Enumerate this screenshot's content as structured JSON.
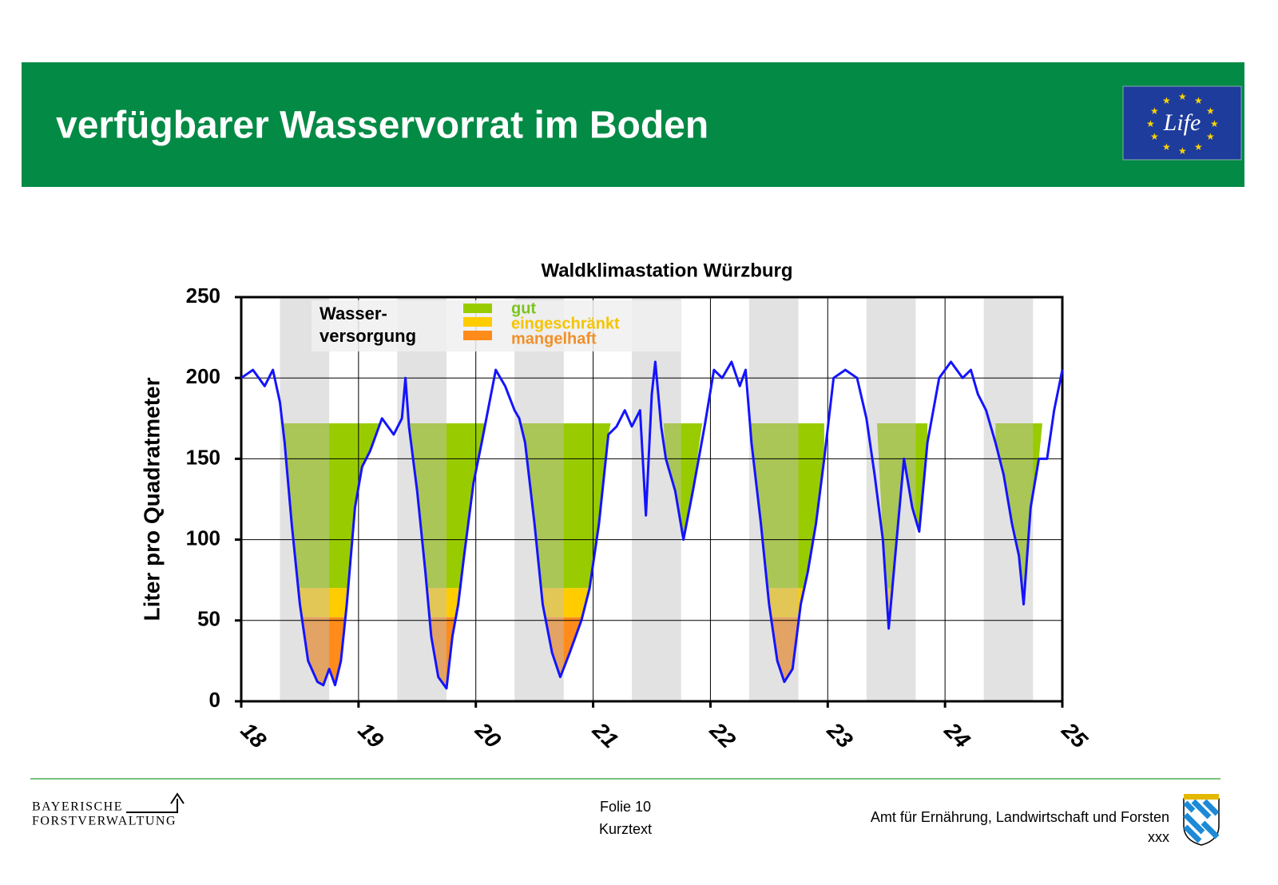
{
  "header": {
    "title": "verfügbarer Wasservorrat im Boden",
    "logo": "Life"
  },
  "chart_data": {
    "type": "line",
    "title": "Waldklimastation Würzburg",
    "y_label": "Liter pro Quadratmeter",
    "x": [
      18.0,
      18.1,
      18.2,
      18.27,
      18.33,
      18.37,
      18.43,
      18.5,
      18.57,
      18.65,
      18.7,
      18.75,
      18.8,
      18.85,
      18.9,
      18.97,
      19.03,
      19.1,
      19.2,
      19.3,
      19.37,
      19.4,
      19.43,
      19.5,
      19.57,
      19.62,
      19.68,
      19.75,
      19.8,
      19.85,
      19.9,
      19.98,
      20.05,
      20.17,
      20.25,
      20.33,
      20.37,
      20.42,
      20.5,
      20.57,
      20.65,
      20.72,
      20.8,
      20.9,
      20.97,
      21.05,
      21.13,
      21.2,
      21.27,
      21.33,
      21.4,
      21.45,
      21.5,
      21.53,
      21.58,
      21.62,
      21.7,
      21.77,
      21.85,
      21.95,
      22.03,
      22.1,
      22.18,
      22.25,
      22.3,
      22.35,
      22.43,
      22.5,
      22.57,
      22.63,
      22.7,
      22.77,
      22.83,
      22.9,
      22.97,
      23.05,
      23.15,
      23.25,
      23.33,
      23.4,
      23.47,
      23.52,
      23.6,
      23.65,
      23.72,
      23.78,
      23.85,
      23.95,
      24.05,
      24.15,
      24.22,
      24.28,
      24.35,
      24.43,
      24.5,
      24.57,
      24.63,
      24.67,
      24.73,
      24.8,
      24.87,
      24.93,
      25.0
    ],
    "series": [
      {
        "color": "#1414ff",
        "values": [
          200,
          205,
          195,
          205,
          185,
          160,
          110,
          60,
          25,
          12,
          10,
          20,
          10,
          25,
          60,
          120,
          145,
          155,
          175,
          165,
          175,
          200,
          170,
          130,
          80,
          40,
          15,
          8,
          40,
          60,
          90,
          135,
          160,
          205,
          195,
          180,
          175,
          160,
          110,
          60,
          30,
          15,
          30,
          50,
          70,
          110,
          165,
          170,
          180,
          170,
          180,
          115,
          190,
          210,
          170,
          150,
          130,
          100,
          130,
          170,
          205,
          200,
          210,
          195,
          205,
          160,
          110,
          60,
          25,
          12,
          20,
          60,
          80,
          110,
          150,
          200,
          205,
          200,
          175,
          140,
          100,
          45,
          110,
          150,
          120,
          105,
          160,
          200,
          210,
          200,
          205,
          190,
          180,
          160,
          140,
          110,
          90,
          60,
          120,
          150,
          150,
          180,
          205
        ]
      }
    ],
    "xlim": [
      18,
      25
    ],
    "ylim": [
      0,
      250
    ],
    "xticks": [
      18,
      19,
      20,
      21,
      22,
      23,
      24,
      25
    ],
    "yticks": [
      0,
      50,
      100,
      150,
      200,
      250
    ],
    "grid": true,
    "seasons": [
      [
        18.33,
        18.75
      ],
      [
        19.33,
        19.75
      ],
      [
        20.33,
        20.75
      ],
      [
        21.33,
        21.75
      ],
      [
        22.33,
        22.75
      ],
      [
        23.33,
        23.75
      ],
      [
        24.33,
        24.75
      ]
    ],
    "fill_periods": [
      [
        18.33,
        19.22
      ],
      [
        19.43,
        20.08
      ],
      [
        20.35,
        21.15
      ],
      [
        21.6,
        21.93
      ],
      [
        22.33,
        22.97
      ],
      [
        23.42,
        23.85
      ],
      [
        24.43,
        24.83
      ]
    ],
    "legend": {
      "title": [
        "Wasser-",
        "versorgung"
      ],
      "entries": [
        {
          "name": "gut",
          "color": "#99cc00",
          "text_color": "#7dc41f",
          "upper": 172,
          "lower": 70
        },
        {
          "name": "eingeschränkt",
          "color": "#ffcc00",
          "text_color": "#f5c400",
          "upper": 70,
          "lower": 52
        },
        {
          "name": "mangelhaft",
          "color": "#ff8c1a",
          "text_color": "#f0902a",
          "upper": 52,
          "lower": 0
        }
      ]
    }
  },
  "footer": {
    "left": [
      "BAYERISCHE",
      "FORSTVERWALTUNG"
    ],
    "center": [
      "Folie 10",
      "Kurztext"
    ],
    "right": [
      "Amt für Ernährung, Landwirtschaft und Forsten",
      "xxx"
    ]
  }
}
